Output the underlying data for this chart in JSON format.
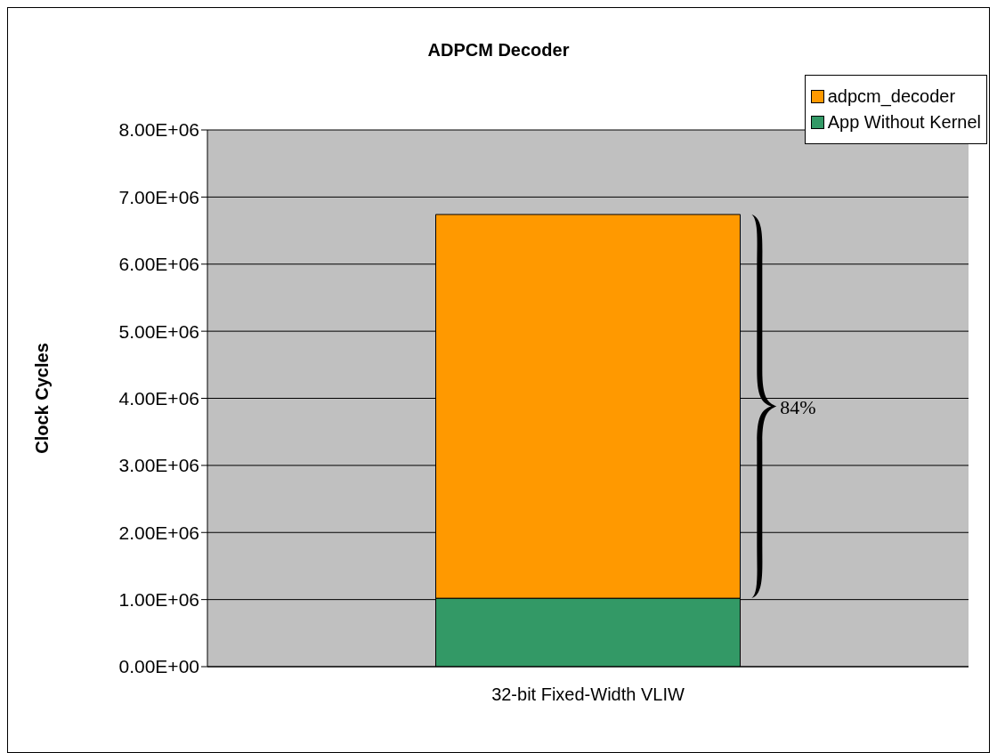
{
  "chart_data": {
    "type": "bar",
    "title": "ADPCM Decoder",
    "ylabel": "Clock Cycles",
    "categories": [
      "32-bit Fixed-Width VLIW"
    ],
    "stacked": true,
    "series": [
      {
        "name": "App Without Kernel",
        "color": "#339966",
        "values": [
          1020000
        ]
      },
      {
        "name": "adpcm_decoder",
        "color": "#ff9900",
        "values": [
          5720000
        ]
      }
    ],
    "ylim": [
      0,
      8000000
    ],
    "yticks": [
      {
        "value": 0,
        "label": "0.00E+00"
      },
      {
        "value": 1000000,
        "label": "1.00E+06"
      },
      {
        "value": 2000000,
        "label": "2.00E+06"
      },
      {
        "value": 3000000,
        "label": "3.00E+06"
      },
      {
        "value": 4000000,
        "label": "4.00E+06"
      },
      {
        "value": 5000000,
        "label": "5.00E+06"
      },
      {
        "value": 6000000,
        "label": "6.00E+06"
      },
      {
        "value": 7000000,
        "label": "7.00E+06"
      },
      {
        "value": 8000000,
        "label": "8.00E+06"
      }
    ],
    "grid": "y",
    "legend": "top right",
    "annotations": [
      "84%"
    ]
  }
}
